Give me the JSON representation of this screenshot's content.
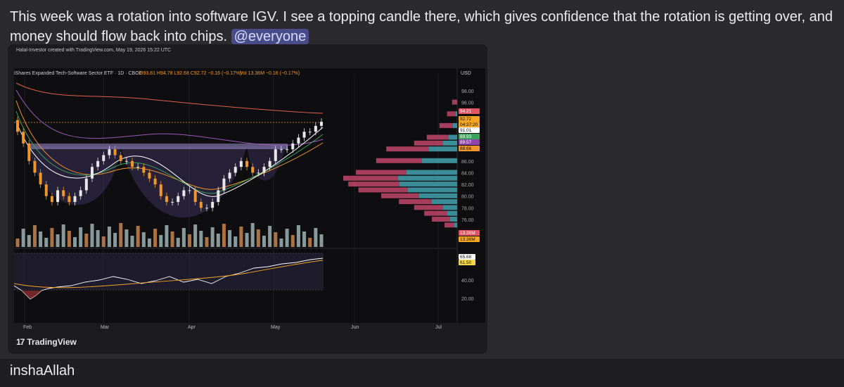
{
  "message": {
    "text": "This week was a rotation into software IGV. I see a topping candle there, which gives confidence that the rotation is getting over, and money should flow back into chips.",
    "mention": "@everyone"
  },
  "chart": {
    "attribution": "Halal-Investor created with TradingView.com, May 19, 2026 15:22 UTC",
    "header": {
      "name": "iShares Expanded Tech-Software Sector ETF",
      "timeframe": "1D",
      "exchange": "CBOE",
      "ohlc": "O93.81  H94.78  L92.68  C92.72  −0.16 (−0.17%)",
      "volume": "Vol 13.36M  −0.16 (−0.17%)"
    },
    "currency": "USD",
    "price_ticks": [
      "98.00",
      "96.00",
      "86.00",
      "84.00",
      "82.00",
      "80.00",
      "78.00",
      "76.00"
    ],
    "price_badges": [
      {
        "text": "94.21",
        "color": "#e25563",
        "fg": "#ffffff"
      },
      {
        "text": "92.72",
        "color": "#f5a623",
        "fg": "#111111"
      },
      {
        "text": "04:37:20",
        "color": "#f5a623",
        "fg": "#111111"
      },
      {
        "text": "91.01",
        "color": "#ffffff",
        "fg": "#111111"
      },
      {
        "text": "89.93",
        "color": "#3aa35c",
        "fg": "#ffffff"
      },
      {
        "text": "89.57",
        "color": "#8e44ad",
        "fg": "#ffffff"
      },
      {
        "text": "88.66",
        "color": "#f0962a",
        "fg": "#111111"
      }
    ],
    "volume_badges": [
      {
        "text": "13.36M",
        "color": "#e25563",
        "fg": "#ffffff"
      },
      {
        "text": "13.36M",
        "color": "#f5a623",
        "fg": "#111111"
      }
    ],
    "rsi_badges": [
      {
        "text": "65.68",
        "color": "#ffffff",
        "fg": "#111111"
      },
      {
        "text": "61.50",
        "color": "#f5d74a",
        "fg": "#111111"
      }
    ],
    "rsi_ticks": [
      "40.00",
      "20.00"
    ],
    "months": [
      "Feb",
      "Mar",
      "Apr",
      "May",
      "Jun",
      "Jul"
    ],
    "logo_text": "TradingView",
    "colors": {
      "up": "#e8e8e8",
      "down": "#f0962a",
      "vp_red": "#c2456a",
      "vp_teal": "#3f9aa8"
    }
  },
  "reply": {
    "text": "inshaAllah"
  }
}
